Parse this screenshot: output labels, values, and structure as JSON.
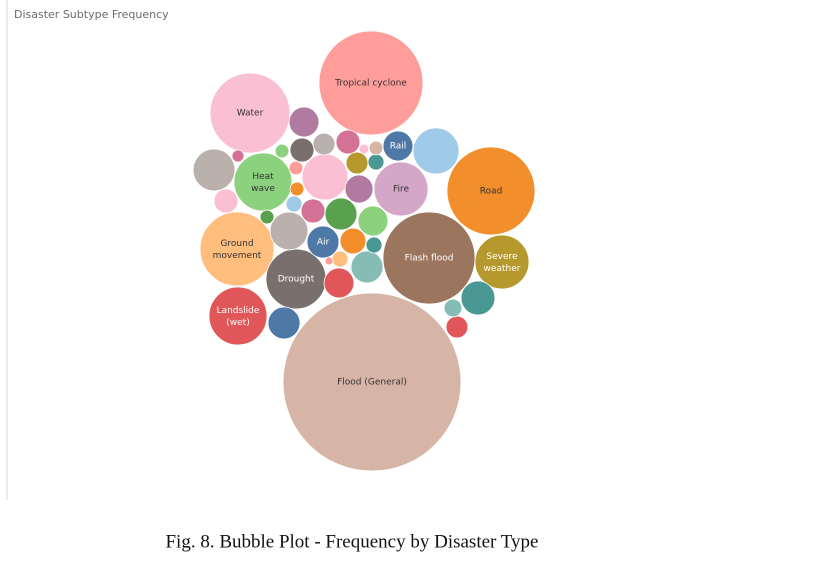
{
  "chart_data": {
    "type": "bubble",
    "title": "Disaster Subtype Frequency",
    "caption": "Fig. 8.  Bubble Plot - Frequency by Disaster Type",
    "categories": [
      "Flood (General)",
      "Tropical cyclone",
      "Flash flood",
      "Road",
      "Water",
      "Ground movement",
      "Drought",
      "Heat wave",
      "Landslide (wet)",
      "Fire",
      "Severe weather",
      "Air",
      "Rail",
      null,
      null,
      null,
      null,
      null,
      null,
      null,
      null,
      null,
      null,
      null,
      null,
      null,
      null,
      null,
      null,
      null,
      null,
      null,
      null,
      null,
      null,
      null,
      null,
      null,
      null,
      null,
      null,
      null,
      null,
      null,
      null,
      null
    ],
    "values": [
      1980,
      676,
      529,
      484,
      400,
      342,
      225,
      210,
      210,
      182,
      182,
      64,
      56,
      132,
      110,
      132,
      90,
      72,
      64,
      64,
      56,
      36,
      36,
      30,
      56,
      49,
      56,
      64,
      42,
      30,
      36,
      36,
      30,
      20,
      16,
      16,
      12,
      16,
      12,
      12,
      12,
      9,
      12,
      6,
      16,
      4
    ],
    "colors": [
      "#d7b5a6",
      "#ff9d9a",
      "#9c755f",
      "#f28e2b",
      "#fabfd2",
      "#ffbe7d",
      "#79706e",
      "#8cd17d",
      "#e15759",
      "#d4a6c8",
      "#b6992d",
      "#4e79a7",
      "#4e79a7",
      "#a0cbe8",
      "#bab0ac",
      "#fabfd2",
      "#bab0ac",
      "#499894",
      "#86bcb6",
      "#59a14f",
      "#b07aa1",
      "#79706e",
      "#d37295",
      "#bab0ac",
      "#8cd17d",
      "#b07aa1",
      "#e15759",
      "#4e79a7",
      "#f28e2b",
      "#b6992d",
      "#fabfd2",
      "#d37295",
      "#e15759",
      "#86bcb6",
      "#499894",
      "#499894",
      "#f28e2b",
      "#a0cbe8",
      "#ff9d9a",
      "#59a14f",
      "#8cd17d",
      "#d37295",
      "#d7b5a6",
      "#fabfd2",
      "#ffbe7d",
      "#ff9d9a"
    ]
  }
}
